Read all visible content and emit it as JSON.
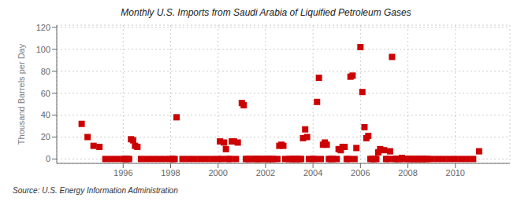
{
  "chart_data": {
    "type": "scatter",
    "title": "Monthly U.S. Imports from Saudi Arabia of Liquified Petroleum Gases",
    "ylabel": "Thousand Barrels per Day",
    "annotation": "Source: U.S. Energy Information Administration",
    "color": "#cc0000",
    "marker": "square",
    "grid": true,
    "xlim": [
      1993.2,
      2012.3
    ],
    "xticks": [
      1996,
      1998,
      2000,
      2002,
      2004,
      2006,
      2008,
      2010
    ],
    "ylim": [
      -4,
      122
    ],
    "yticks": [
      0,
      20,
      40,
      60,
      80,
      100,
      120
    ],
    "x": [
      1994.25,
      1994.5,
      1994.75,
      1995.0,
      1995.25,
      1995.5,
      1995.75,
      1996.0,
      1996.08,
      1996.17,
      1996.25,
      1996.33,
      1996.42,
      1996.5,
      1996.6,
      1996.75,
      1997.0,
      1997.25,
      1997.5,
      1997.75,
      1998.0,
      1998.08,
      1998.17,
      1998.25,
      1998.5,
      1998.75,
      1999.0,
      1999.25,
      1999.5,
      1999.75,
      2000.0,
      2000.08,
      2000.17,
      2000.25,
      2000.33,
      2000.42,
      2000.5,
      2000.58,
      2000.67,
      2000.75,
      2000.83,
      2001.0,
      2001.08,
      2001.17,
      2001.25,
      2001.33,
      2001.5,
      2001.58,
      2001.67,
      2001.75,
      2001.83,
      2002.0,
      2002.08,
      2002.17,
      2002.25,
      2002.33,
      2002.5,
      2002.58,
      2002.67,
      2002.75,
      2002.83,
      2003.0,
      2003.08,
      2003.17,
      2003.25,
      2003.33,
      2003.42,
      2003.5,
      2003.58,
      2003.67,
      2003.75,
      2003.83,
      2004.0,
      2004.08,
      2004.17,
      2004.25,
      2004.33,
      2004.42,
      2004.5,
      2004.58,
      2004.67,
      2004.75,
      2004.83,
      2005.0,
      2005.08,
      2005.17,
      2005.25,
      2005.33,
      2005.42,
      2005.5,
      2005.58,
      2005.67,
      2005.75,
      2005.83,
      2006.0,
      2006.08,
      2006.17,
      2006.25,
      2006.33,
      2006.42,
      2006.5,
      2006.58,
      2006.67,
      2006.75,
      2006.83,
      2007.0,
      2007.08,
      2007.17,
      2007.25,
      2007.33,
      2007.42,
      2007.5,
      2007.58,
      2007.67,
      2007.75,
      2007.83,
      2008.0,
      2008.08,
      2008.17,
      2008.25,
      2008.33,
      2008.42,
      2008.5,
      2008.58,
      2008.67,
      2008.75,
      2008.83,
      2009.0,
      2009.25,
      2009.5,
      2009.75,
      2010.0,
      2010.25,
      2010.5,
      2010.75,
      2011.0
    ],
    "values": [
      32,
      20,
      12,
      11,
      0,
      0,
      0,
      0,
      0,
      0,
      0,
      18,
      17,
      12,
      11,
      0,
      0,
      0,
      0,
      0,
      0,
      0,
      0,
      38,
      0,
      0,
      0,
      0,
      0,
      0,
      0,
      16,
      0,
      15,
      9,
      0,
      0,
      16,
      16,
      0,
      15,
      51,
      49,
      0,
      0,
      0,
      0,
      0,
      0,
      0,
      0,
      0,
      0,
      0,
      0,
      0,
      0,
      12,
      13,
      12,
      0,
      0,
      0,
      0,
      0,
      0,
      0,
      0,
      19,
      27,
      20,
      0,
      0,
      0,
      52,
      74,
      0,
      13,
      15,
      13,
      0,
      0,
      0,
      0,
      9,
      8,
      11,
      11,
      0,
      0,
      75,
      76,
      0,
      10,
      102,
      61,
      29,
      19,
      21,
      0,
      0,
      0,
      0,
      6,
      9,
      8,
      0,
      0,
      7,
      93,
      0,
      0,
      0,
      0,
      1,
      0,
      0,
      0,
      0,
      0,
      0,
      0,
      0,
      0,
      0,
      0,
      0,
      0,
      0,
      0,
      0,
      0,
      0,
      0,
      0,
      7
    ]
  }
}
